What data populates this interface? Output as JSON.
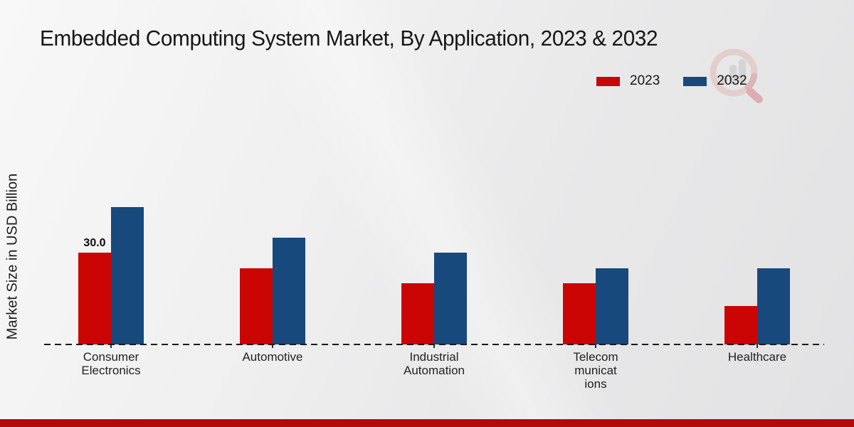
{
  "title": "Embedded Computing System Market, By Application, 2023 & 2032",
  "y_axis_label": "Market Size in USD Billion",
  "legend": {
    "position": "top-right",
    "items": [
      {
        "label": "2023"
      },
      {
        "label": "2032"
      }
    ]
  },
  "icons": {
    "watermark": "magnifier-bar-chart-logo"
  },
  "colors": {
    "series_2023": "#cb0404",
    "series_2032": "#17497d",
    "footer_strip": "#b30909",
    "baseline": "#1a1a1a",
    "background": "#ededee"
  },
  "chart_data": {
    "type": "bar",
    "title": "Embedded Computing System Market, By Application, 2023 & 2032",
    "ylabel": "Market Size in USD Billion",
    "xlabel": "",
    "categories": [
      "Consumer Electronics",
      "Automotive",
      "Industrial Automation",
      "Telecommunications",
      "Healthcare"
    ],
    "category_display_lines": [
      [
        "Consumer",
        "Electronics"
      ],
      [
        "Automotive"
      ],
      [
        "Industrial",
        "Automation"
      ],
      [
        "Telecom",
        "municat",
        "ions"
      ],
      [
        "Healthcare"
      ]
    ],
    "series": [
      {
        "name": "2023",
        "color": "#cb0404",
        "values": [
          30.0,
          25.0,
          20.0,
          20.0,
          12.5
        ]
      },
      {
        "name": "2032",
        "color": "#17497d",
        "values": [
          45.0,
          35.0,
          30.0,
          25.0,
          25.0
        ]
      }
    ],
    "data_labels": [
      {
        "series": "2023",
        "category": "Consumer Electronics",
        "text": "30.0"
      }
    ],
    "ylim": [
      0,
      50
    ],
    "y_axis_ticks": "none",
    "grid": false,
    "baseline_style": "dashed",
    "legend_position": "top-right"
  }
}
